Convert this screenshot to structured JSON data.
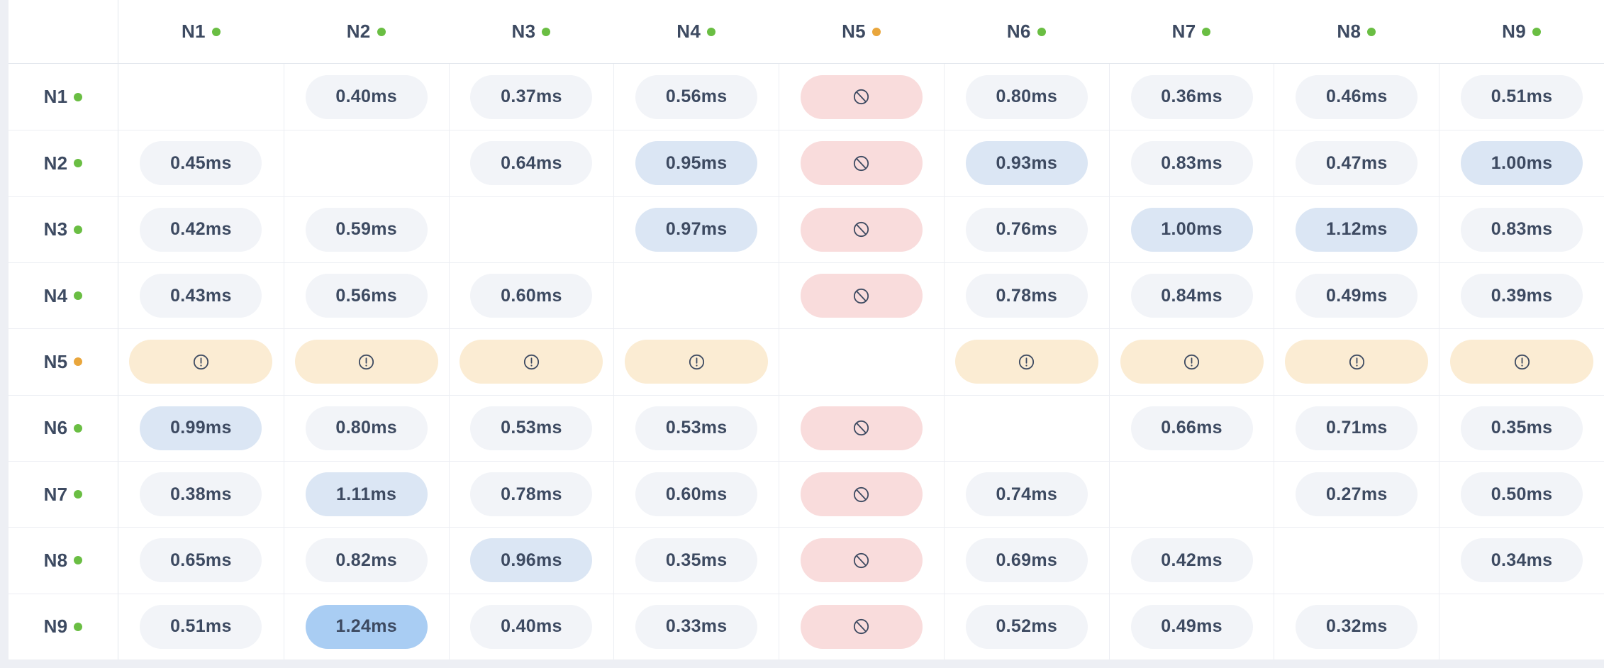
{
  "matrix": {
    "unit": "ms",
    "columns": [
      {
        "label": "N1",
        "status": "online"
      },
      {
        "label": "N2",
        "status": "online"
      },
      {
        "label": "N3",
        "status": "online"
      },
      {
        "label": "N4",
        "status": "online"
      },
      {
        "label": "N5",
        "status": "warning"
      },
      {
        "label": "N6",
        "status": "online"
      },
      {
        "label": "N7",
        "status": "online"
      },
      {
        "label": "N8",
        "status": "online"
      },
      {
        "label": "N9",
        "status": "online"
      }
    ],
    "rows": [
      {
        "label": "N1",
        "status": "online",
        "cells": [
          {
            "type": "self"
          },
          {
            "type": "value",
            "text": "0.40ms",
            "level": "normal"
          },
          {
            "type": "value",
            "text": "0.37ms",
            "level": "normal"
          },
          {
            "type": "value",
            "text": "0.56ms",
            "level": "normal"
          },
          {
            "type": "blocked"
          },
          {
            "type": "value",
            "text": "0.80ms",
            "level": "normal"
          },
          {
            "type": "value",
            "text": "0.36ms",
            "level": "normal"
          },
          {
            "type": "value",
            "text": "0.46ms",
            "level": "normal"
          },
          {
            "type": "value",
            "text": "0.51ms",
            "level": "normal"
          }
        ]
      },
      {
        "label": "N2",
        "status": "online",
        "cells": [
          {
            "type": "value",
            "text": "0.45ms",
            "level": "normal"
          },
          {
            "type": "self"
          },
          {
            "type": "value",
            "text": "0.64ms",
            "level": "normal"
          },
          {
            "type": "value",
            "text": "0.95ms",
            "level": "elevated"
          },
          {
            "type": "blocked"
          },
          {
            "type": "value",
            "text": "0.93ms",
            "level": "elevated"
          },
          {
            "type": "value",
            "text": "0.83ms",
            "level": "normal"
          },
          {
            "type": "value",
            "text": "0.47ms",
            "level": "normal"
          },
          {
            "type": "value",
            "text": "1.00ms",
            "level": "elevated"
          }
        ]
      },
      {
        "label": "N3",
        "status": "online",
        "cells": [
          {
            "type": "value",
            "text": "0.42ms",
            "level": "normal"
          },
          {
            "type": "value",
            "text": "0.59ms",
            "level": "normal"
          },
          {
            "type": "self"
          },
          {
            "type": "value",
            "text": "0.97ms",
            "level": "elevated"
          },
          {
            "type": "blocked"
          },
          {
            "type": "value",
            "text": "0.76ms",
            "level": "normal"
          },
          {
            "type": "value",
            "text": "1.00ms",
            "level": "elevated"
          },
          {
            "type": "value",
            "text": "1.12ms",
            "level": "elevated"
          },
          {
            "type": "value",
            "text": "0.83ms",
            "level": "normal"
          }
        ]
      },
      {
        "label": "N4",
        "status": "online",
        "cells": [
          {
            "type": "value",
            "text": "0.43ms",
            "level": "normal"
          },
          {
            "type": "value",
            "text": "0.56ms",
            "level": "normal"
          },
          {
            "type": "value",
            "text": "0.60ms",
            "level": "normal"
          },
          {
            "type": "self"
          },
          {
            "type": "blocked"
          },
          {
            "type": "value",
            "text": "0.78ms",
            "level": "normal"
          },
          {
            "type": "value",
            "text": "0.84ms",
            "level": "normal"
          },
          {
            "type": "value",
            "text": "0.49ms",
            "level": "normal"
          },
          {
            "type": "value",
            "text": "0.39ms",
            "level": "normal"
          }
        ]
      },
      {
        "label": "N5",
        "status": "warning",
        "cells": [
          {
            "type": "warning"
          },
          {
            "type": "warning"
          },
          {
            "type": "warning"
          },
          {
            "type": "warning"
          },
          {
            "type": "self"
          },
          {
            "type": "warning"
          },
          {
            "type": "warning"
          },
          {
            "type": "warning"
          },
          {
            "type": "warning"
          }
        ]
      },
      {
        "label": "N6",
        "status": "online",
        "cells": [
          {
            "type": "value",
            "text": "0.99ms",
            "level": "elevated"
          },
          {
            "type": "value",
            "text": "0.80ms",
            "level": "normal"
          },
          {
            "type": "value",
            "text": "0.53ms",
            "level": "normal"
          },
          {
            "type": "value",
            "text": "0.53ms",
            "level": "normal"
          },
          {
            "type": "blocked"
          },
          {
            "type": "self"
          },
          {
            "type": "value",
            "text": "0.66ms",
            "level": "normal"
          },
          {
            "type": "value",
            "text": "0.71ms",
            "level": "normal"
          },
          {
            "type": "value",
            "text": "0.35ms",
            "level": "normal"
          }
        ]
      },
      {
        "label": "N7",
        "status": "online",
        "cells": [
          {
            "type": "value",
            "text": "0.38ms",
            "level": "normal"
          },
          {
            "type": "value",
            "text": "1.11ms",
            "level": "elevated"
          },
          {
            "type": "value",
            "text": "0.78ms",
            "level": "normal"
          },
          {
            "type": "value",
            "text": "0.60ms",
            "level": "normal"
          },
          {
            "type": "blocked"
          },
          {
            "type": "value",
            "text": "0.74ms",
            "level": "normal"
          },
          {
            "type": "self"
          },
          {
            "type": "value",
            "text": "0.27ms",
            "level": "normal"
          },
          {
            "type": "value",
            "text": "0.50ms",
            "level": "normal"
          }
        ]
      },
      {
        "label": "N8",
        "status": "online",
        "cells": [
          {
            "type": "value",
            "text": "0.65ms",
            "level": "normal"
          },
          {
            "type": "value",
            "text": "0.82ms",
            "level": "normal"
          },
          {
            "type": "value",
            "text": "0.96ms",
            "level": "elevated"
          },
          {
            "type": "value",
            "text": "0.35ms",
            "level": "normal"
          },
          {
            "type": "blocked"
          },
          {
            "type": "value",
            "text": "0.69ms",
            "level": "normal"
          },
          {
            "type": "value",
            "text": "0.42ms",
            "level": "normal"
          },
          {
            "type": "self"
          },
          {
            "type": "value",
            "text": "0.34ms",
            "level": "normal"
          }
        ]
      },
      {
        "label": "N9",
        "status": "online",
        "cells": [
          {
            "type": "value",
            "text": "0.51ms",
            "level": "normal"
          },
          {
            "type": "value",
            "text": "1.24ms",
            "level": "high"
          },
          {
            "type": "value",
            "text": "0.40ms",
            "level": "normal"
          },
          {
            "type": "value",
            "text": "0.33ms",
            "level": "normal"
          },
          {
            "type": "blocked"
          },
          {
            "type": "value",
            "text": "0.52ms",
            "level": "normal"
          },
          {
            "type": "value",
            "text": "0.49ms",
            "level": "normal"
          },
          {
            "type": "value",
            "text": "0.32ms",
            "level": "normal"
          },
          {
            "type": "self"
          }
        ]
      }
    ]
  },
  "icons": {
    "blocked": "circle-slash-icon",
    "warning": "alert-circle-icon",
    "status_online": "green-dot",
    "status_warning": "orange-dot"
  },
  "colors": {
    "page_background": "#edeff4",
    "table_background": "#ffffff",
    "grid_line": "#eceef3",
    "text": "#3d4a61",
    "pill_normal": "#f2f4f8",
    "pill_elevated": "#dbe6f4",
    "pill_high": "#a9cdf3",
    "pill_blocked": "#f9dcdc",
    "pill_warning": "#fbecd3",
    "dot_online": "#6abe43",
    "dot_warning": "#e9a63c"
  }
}
